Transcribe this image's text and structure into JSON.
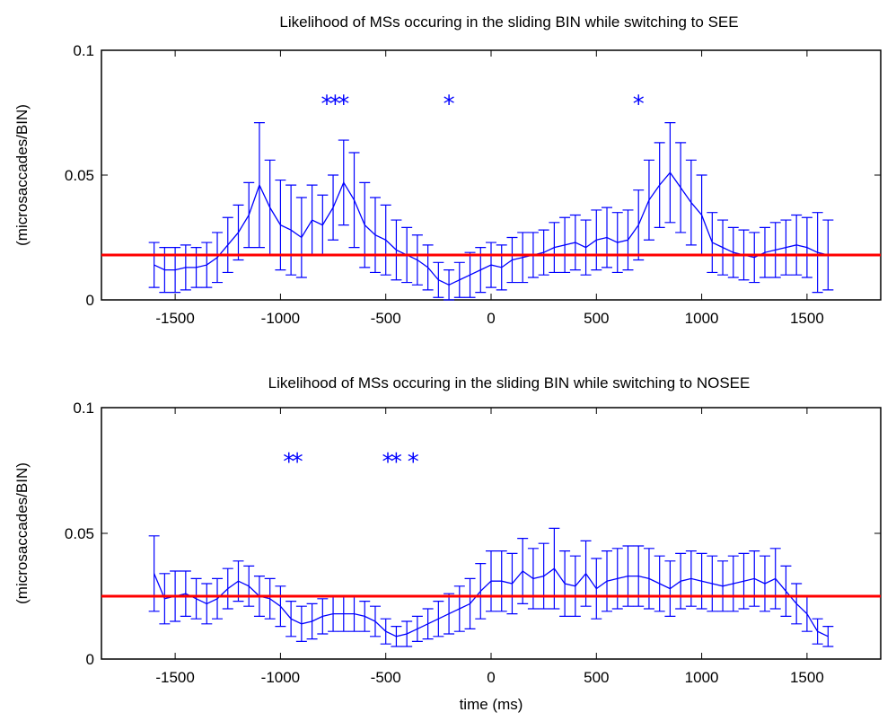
{
  "chart_data": [
    {
      "type": "line",
      "title": "Likelihood of MSs occuring in the sliding BIN while switching to SEE",
      "xlabel": "",
      "ylabel": "(microsaccades/BIN)",
      "xlim": [
        -1850,
        1850
      ],
      "ylim": [
        0,
        0.1
      ],
      "xticks": [
        -1500,
        -1000,
        -500,
        0,
        500,
        1000,
        1500
      ],
      "yticks": [
        0,
        0.05,
        0.1
      ],
      "ytick_labels": [
        "0",
        "0.05",
        "0.1"
      ],
      "baseline": 0.018,
      "line_color": "#0000ff",
      "baseline_color": "#ff0000",
      "x": [
        -1600,
        -1550,
        -1500,
        -1450,
        -1400,
        -1350,
        -1300,
        -1250,
        -1200,
        -1150,
        -1100,
        -1050,
        -1000,
        -950,
        -900,
        -850,
        -800,
        -750,
        -700,
        -650,
        -600,
        -550,
        -500,
        -450,
        -400,
        -350,
        -300,
        -250,
        -200,
        -150,
        -100,
        -50,
        0,
        50,
        100,
        150,
        200,
        250,
        300,
        350,
        400,
        450,
        500,
        550,
        600,
        650,
        700,
        750,
        800,
        850,
        900,
        950,
        1000,
        1050,
        1100,
        1150,
        1200,
        1250,
        1300,
        1350,
        1400,
        1450,
        1500,
        1550,
        1600
      ],
      "y": [
        0.014,
        0.012,
        0.012,
        0.013,
        0.013,
        0.014,
        0.017,
        0.022,
        0.027,
        0.034,
        0.046,
        0.037,
        0.03,
        0.028,
        0.025,
        0.032,
        0.03,
        0.037,
        0.047,
        0.04,
        0.03,
        0.026,
        0.024,
        0.02,
        0.018,
        0.016,
        0.013,
        0.008,
        0.006,
        0.008,
        0.01,
        0.012,
        0.014,
        0.013,
        0.016,
        0.017,
        0.018,
        0.019,
        0.021,
        0.022,
        0.023,
        0.021,
        0.024,
        0.025,
        0.023,
        0.024,
        0.03,
        0.04,
        0.046,
        0.051,
        0.045,
        0.039,
        0.034,
        0.023,
        0.021,
        0.019,
        0.018,
        0.017,
        0.019,
        0.02,
        0.021,
        0.022,
        0.021,
        0.019,
        0.018
      ],
      "error": [
        0.009,
        0.009,
        0.009,
        0.009,
        0.008,
        0.009,
        0.01,
        0.011,
        0.011,
        0.013,
        0.025,
        0.019,
        0.018,
        0.018,
        0.016,
        0.014,
        0.012,
        0.013,
        0.017,
        0.019,
        0.017,
        0.015,
        0.014,
        0.012,
        0.011,
        0.01,
        0.009,
        0.007,
        0.006,
        0.007,
        0.009,
        0.009,
        0.009,
        0.009,
        0.009,
        0.01,
        0.009,
        0.009,
        0.01,
        0.011,
        0.011,
        0.011,
        0.012,
        0.012,
        0.012,
        0.012,
        0.014,
        0.016,
        0.017,
        0.02,
        0.018,
        0.017,
        0.016,
        0.012,
        0.011,
        0.01,
        0.01,
        0.01,
        0.01,
        0.011,
        0.011,
        0.012,
        0.012,
        0.016,
        0.014
      ],
      "significance_x": [
        -780,
        -740,
        -700,
        -200,
        700
      ],
      "significance_y": 0.08,
      "significance_marker": "*"
    },
    {
      "type": "line",
      "title": "Likelihood of MSs occuring in the sliding BIN while switching to NOSEE",
      "xlabel": "time (ms)",
      "ylabel": "(microsaccades/BIN)",
      "xlim": [
        -1850,
        1850
      ],
      "ylim": [
        0,
        0.1
      ],
      "xticks": [
        -1500,
        -1000,
        -500,
        0,
        500,
        1000,
        1500
      ],
      "yticks": [
        0,
        0.05,
        0.1
      ],
      "ytick_labels": [
        "0",
        "0.05",
        "0.1"
      ],
      "baseline": 0.025,
      "line_color": "#0000ff",
      "baseline_color": "#ff0000",
      "x": [
        -1600,
        -1550,
        -1500,
        -1450,
        -1400,
        -1350,
        -1300,
        -1250,
        -1200,
        -1150,
        -1100,
        -1050,
        -1000,
        -950,
        -900,
        -850,
        -800,
        -750,
        -700,
        -650,
        -600,
        -550,
        -500,
        -450,
        -400,
        -350,
        -300,
        -250,
        -200,
        -150,
        -100,
        -50,
        0,
        50,
        100,
        150,
        200,
        250,
        300,
        350,
        400,
        450,
        500,
        550,
        600,
        650,
        700,
        750,
        800,
        850,
        900,
        950,
        1000,
        1050,
        1100,
        1150,
        1200,
        1250,
        1300,
        1350,
        1400,
        1450,
        1500,
        1550,
        1600
      ],
      "y": [
        0.034,
        0.024,
        0.025,
        0.026,
        0.024,
        0.022,
        0.024,
        0.028,
        0.031,
        0.029,
        0.025,
        0.024,
        0.021,
        0.016,
        0.014,
        0.015,
        0.017,
        0.018,
        0.018,
        0.018,
        0.017,
        0.015,
        0.011,
        0.009,
        0.01,
        0.012,
        0.014,
        0.016,
        0.018,
        0.02,
        0.022,
        0.027,
        0.031,
        0.031,
        0.03,
        0.035,
        0.032,
        0.033,
        0.036,
        0.03,
        0.029,
        0.034,
        0.028,
        0.031,
        0.032,
        0.033,
        0.033,
        0.032,
        0.03,
        0.028,
        0.031,
        0.032,
        0.031,
        0.03,
        0.029,
        0.03,
        0.031,
        0.032,
        0.03,
        0.032,
        0.027,
        0.022,
        0.018,
        0.011,
        0.009
      ],
      "error": [
        0.015,
        0.01,
        0.01,
        0.009,
        0.008,
        0.008,
        0.008,
        0.008,
        0.008,
        0.008,
        0.008,
        0.008,
        0.008,
        0.007,
        0.007,
        0.007,
        0.007,
        0.007,
        0.007,
        0.007,
        0.006,
        0.006,
        0.005,
        0.004,
        0.005,
        0.005,
        0.006,
        0.007,
        0.008,
        0.009,
        0.01,
        0.011,
        0.012,
        0.012,
        0.012,
        0.013,
        0.012,
        0.013,
        0.016,
        0.013,
        0.012,
        0.013,
        0.012,
        0.012,
        0.012,
        0.012,
        0.012,
        0.012,
        0.011,
        0.011,
        0.011,
        0.011,
        0.011,
        0.011,
        0.01,
        0.011,
        0.011,
        0.011,
        0.011,
        0.012,
        0.01,
        0.008,
        0.007,
        0.005,
        0.004
      ],
      "significance_x": [
        -960,
        -920,
        -490,
        -450,
        -370
      ],
      "significance_y": 0.08,
      "significance_marker": "*"
    }
  ]
}
